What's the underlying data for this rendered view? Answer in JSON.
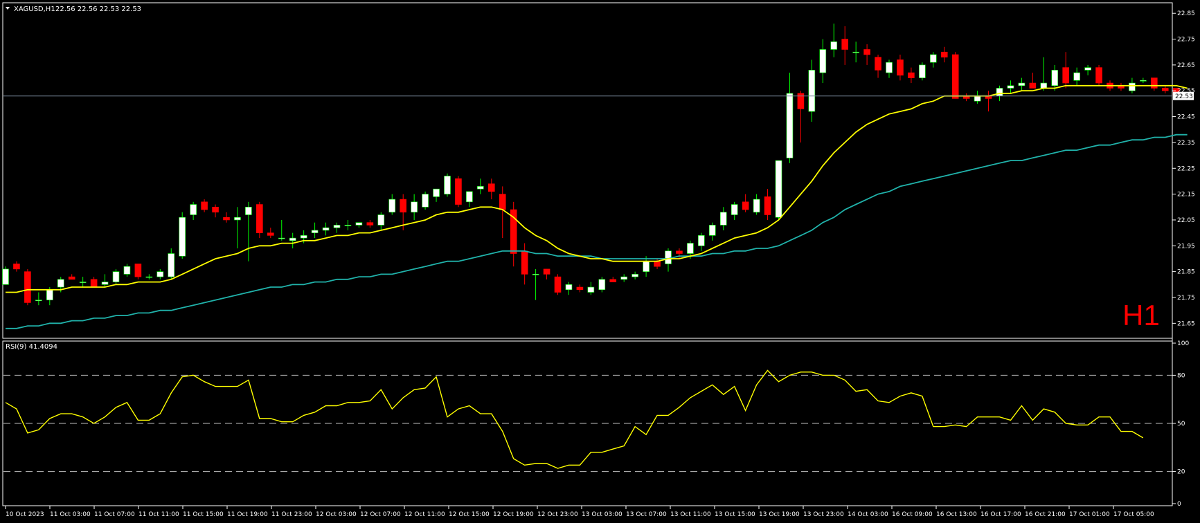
{
  "header": {
    "symbol": "XAGUSD,H1",
    "ohlc": "22.56 22.56 22.53 22.53"
  },
  "price_panel": {
    "current_price_label": "22.53",
    "timeframe_watermark": "H1",
    "colors": {
      "bull_body": "#ffffff",
      "bear_body": "#ff0000",
      "bull_wick": "#00ff00",
      "bear_wick": "#ff0000",
      "ma_fast": "#ffff00",
      "ma_slow": "#20b2aa",
      "bid_line": "#778899",
      "watermark": "#ff0000"
    },
    "yticks": [
      "22.85",
      "22.75",
      "22.65",
      "22.55",
      "22.45",
      "22.35",
      "22.25",
      "22.15",
      "22.05",
      "21.95",
      "21.85",
      "21.75",
      "21.65"
    ]
  },
  "rsi_panel": {
    "label": "RSI(9) 41.4094",
    "line_color": "#ffff00",
    "levels": [
      80,
      50,
      20
    ],
    "yticks": [
      "100",
      "80",
      "50",
      "20",
      "0"
    ]
  },
  "x_axis": {
    "labels": [
      "10 Oct 2023",
      "11 Oct 03:00",
      "11 Oct 07:00",
      "11 Oct 11:00",
      "11 Oct 15:00",
      "11 Oct 19:00",
      "11 Oct 23:00",
      "12 Oct 03:00",
      "12 Oct 07:00",
      "12 Oct 11:00",
      "12 Oct 15:00",
      "12 Oct 19:00",
      "12 Oct 23:00",
      "13 Oct 03:00",
      "13 Oct 07:00",
      "13 Oct 11:00",
      "13 Oct 15:00",
      "13 Oct 19:00",
      "13 Oct 23:00",
      "14 Oct 03:00",
      "16 Oct 09:00",
      "16 Oct 13:00",
      "16 Oct 17:00",
      "16 Oct 21:00",
      "17 Oct 01:00",
      "17 Oct 05:00"
    ]
  },
  "chart_data": [
    {
      "type": "candlestick",
      "symbol": "XAGUSD",
      "timeframe": "H1",
      "ylim": [
        21.6,
        22.88
      ],
      "candles": [
        {
          "o": 21.8,
          "h": 21.87,
          "l": 21.8,
          "c": 21.86
        },
        {
          "o": 21.88,
          "h": 21.89,
          "l": 21.85,
          "c": 21.86
        },
        {
          "o": 21.85,
          "h": 21.86,
          "l": 21.72,
          "c": 21.73
        },
        {
          "o": 21.74,
          "h": 21.77,
          "l": 21.72,
          "c": 21.74
        },
        {
          "o": 21.74,
          "h": 21.79,
          "l": 21.72,
          "c": 21.78
        },
        {
          "o": 21.79,
          "h": 21.83,
          "l": 21.77,
          "c": 21.82
        },
        {
          "o": 21.83,
          "h": 21.84,
          "l": 21.82,
          "c": 21.82
        },
        {
          "o": 21.81,
          "h": 21.83,
          "l": 21.79,
          "c": 21.81
        },
        {
          "o": 21.82,
          "h": 21.83,
          "l": 21.79,
          "c": 21.79
        },
        {
          "o": 21.8,
          "h": 21.84,
          "l": 21.79,
          "c": 21.81
        },
        {
          "o": 21.81,
          "h": 21.86,
          "l": 21.8,
          "c": 21.85
        },
        {
          "o": 21.84,
          "h": 21.88,
          "l": 21.83,
          "c": 21.87
        },
        {
          "o": 21.88,
          "h": 21.88,
          "l": 21.82,
          "c": 21.83
        },
        {
          "o": 21.83,
          "h": 21.84,
          "l": 21.82,
          "c": 21.83
        },
        {
          "o": 21.83,
          "h": 21.86,
          "l": 21.82,
          "c": 21.85
        },
        {
          "o": 21.83,
          "h": 21.94,
          "l": 21.82,
          "c": 21.92
        },
        {
          "o": 21.91,
          "h": 22.08,
          "l": 21.9,
          "c": 22.06
        },
        {
          "o": 22.07,
          "h": 22.12,
          "l": 22.05,
          "c": 22.11
        },
        {
          "o": 22.12,
          "h": 22.13,
          "l": 22.08,
          "c": 22.09
        },
        {
          "o": 22.1,
          "h": 22.11,
          "l": 22.06,
          "c": 22.08
        },
        {
          "o": 22.06,
          "h": 22.08,
          "l": 22.04,
          "c": 22.05
        },
        {
          "o": 22.05,
          "h": 22.1,
          "l": 21.94,
          "c": 22.06
        },
        {
          "o": 22.07,
          "h": 22.12,
          "l": 21.89,
          "c": 22.1
        },
        {
          "o": 22.11,
          "h": 22.12,
          "l": 21.98,
          "c": 22.0
        },
        {
          "o": 22.0,
          "h": 22.02,
          "l": 21.98,
          "c": 21.99
        },
        {
          "o": 21.98,
          "h": 22.05,
          "l": 21.97,
          "c": 21.98
        },
        {
          "o": 21.97,
          "h": 22.0,
          "l": 21.94,
          "c": 21.98
        },
        {
          "o": 21.98,
          "h": 22.01,
          "l": 21.96,
          "c": 21.99
        },
        {
          "o": 22.0,
          "h": 22.04,
          "l": 21.98,
          "c": 22.01
        },
        {
          "o": 22.01,
          "h": 22.04,
          "l": 21.99,
          "c": 22.02
        },
        {
          "o": 22.02,
          "h": 22.04,
          "l": 22.0,
          "c": 22.03
        },
        {
          "o": 22.03,
          "h": 22.05,
          "l": 22.01,
          "c": 22.03
        },
        {
          "o": 22.03,
          "h": 22.04,
          "l": 22.02,
          "c": 22.04
        },
        {
          "o": 22.04,
          "h": 22.05,
          "l": 22.02,
          "c": 22.03
        },
        {
          "o": 22.03,
          "h": 22.08,
          "l": 22.01,
          "c": 22.07
        },
        {
          "o": 22.08,
          "h": 22.15,
          "l": 22.07,
          "c": 22.13
        },
        {
          "o": 22.13,
          "h": 22.15,
          "l": 22.01,
          "c": 22.08
        },
        {
          "o": 22.08,
          "h": 22.15,
          "l": 22.05,
          "c": 22.12
        },
        {
          "o": 22.1,
          "h": 22.16,
          "l": 22.09,
          "c": 22.15
        },
        {
          "o": 22.14,
          "h": 22.17,
          "l": 22.12,
          "c": 22.17
        },
        {
          "o": 22.15,
          "h": 22.23,
          "l": 22.14,
          "c": 22.22
        },
        {
          "o": 22.21,
          "h": 22.22,
          "l": 22.1,
          "c": 22.11
        },
        {
          "o": 22.12,
          "h": 22.16,
          "l": 22.1,
          "c": 22.16
        },
        {
          "o": 22.17,
          "h": 22.21,
          "l": 22.15,
          "c": 22.18
        },
        {
          "o": 22.19,
          "h": 22.21,
          "l": 22.13,
          "c": 22.16
        },
        {
          "o": 22.15,
          "h": 22.18,
          "l": 21.98,
          "c": 22.09
        },
        {
          "o": 22.09,
          "h": 22.12,
          "l": 21.87,
          "c": 21.92
        },
        {
          "o": 21.93,
          "h": 21.96,
          "l": 21.8,
          "c": 21.84
        },
        {
          "o": 21.84,
          "h": 21.86,
          "l": 21.74,
          "c": 21.84
        },
        {
          "o": 21.86,
          "h": 21.86,
          "l": 21.82,
          "c": 21.84
        },
        {
          "o": 21.83,
          "h": 21.84,
          "l": 21.76,
          "c": 21.77
        },
        {
          "o": 21.78,
          "h": 21.81,
          "l": 21.76,
          "c": 21.8
        },
        {
          "o": 21.79,
          "h": 21.8,
          "l": 21.77,
          "c": 21.78
        },
        {
          "o": 21.77,
          "h": 21.81,
          "l": 21.76,
          "c": 21.79
        },
        {
          "o": 21.78,
          "h": 21.83,
          "l": 21.77,
          "c": 21.82
        },
        {
          "o": 21.82,
          "h": 21.83,
          "l": 21.81,
          "c": 21.81
        },
        {
          "o": 21.82,
          "h": 21.84,
          "l": 21.81,
          "c": 21.83
        },
        {
          "o": 21.83,
          "h": 21.85,
          "l": 21.82,
          "c": 21.84
        },
        {
          "o": 21.85,
          "h": 21.91,
          "l": 21.83,
          "c": 21.89
        },
        {
          "o": 21.89,
          "h": 21.9,
          "l": 21.86,
          "c": 21.87
        },
        {
          "o": 21.88,
          "h": 21.94,
          "l": 21.85,
          "c": 21.93
        },
        {
          "o": 21.93,
          "h": 21.94,
          "l": 21.9,
          "c": 21.92
        },
        {
          "o": 21.92,
          "h": 21.97,
          "l": 21.9,
          "c": 21.96
        },
        {
          "o": 21.95,
          "h": 22.0,
          "l": 21.93,
          "c": 21.99
        },
        {
          "o": 21.99,
          "h": 22.04,
          "l": 21.97,
          "c": 22.03
        },
        {
          "o": 22.03,
          "h": 22.1,
          "l": 22.01,
          "c": 22.08
        },
        {
          "o": 22.07,
          "h": 22.12,
          "l": 22.05,
          "c": 22.11
        },
        {
          "o": 22.12,
          "h": 22.15,
          "l": 22.08,
          "c": 22.09
        },
        {
          "o": 22.08,
          "h": 22.15,
          "l": 22.07,
          "c": 22.13
        },
        {
          "o": 22.14,
          "h": 22.17,
          "l": 22.05,
          "c": 22.07
        },
        {
          "o": 22.06,
          "h": 22.28,
          "l": 22.05,
          "c": 22.28
        },
        {
          "o": 22.29,
          "h": 22.62,
          "l": 22.27,
          "c": 22.54
        },
        {
          "o": 22.54,
          "h": 22.55,
          "l": 22.35,
          "c": 22.48
        },
        {
          "o": 22.47,
          "h": 22.67,
          "l": 22.43,
          "c": 22.63
        },
        {
          "o": 22.62,
          "h": 22.75,
          "l": 22.58,
          "c": 22.71
        },
        {
          "o": 22.71,
          "h": 22.81,
          "l": 22.68,
          "c": 22.74
        },
        {
          "o": 22.75,
          "h": 22.8,
          "l": 22.65,
          "c": 22.71
        },
        {
          "o": 22.7,
          "h": 22.74,
          "l": 22.66,
          "c": 22.7
        },
        {
          "o": 22.71,
          "h": 22.73,
          "l": 22.65,
          "c": 22.69
        },
        {
          "o": 22.68,
          "h": 22.69,
          "l": 22.6,
          "c": 22.63
        },
        {
          "o": 22.62,
          "h": 22.67,
          "l": 22.6,
          "c": 22.66
        },
        {
          "o": 22.67,
          "h": 22.69,
          "l": 22.59,
          "c": 22.61
        },
        {
          "o": 22.62,
          "h": 22.64,
          "l": 22.58,
          "c": 22.6
        },
        {
          "o": 22.6,
          "h": 22.66,
          "l": 22.59,
          "c": 22.65
        },
        {
          "o": 22.66,
          "h": 22.7,
          "l": 22.64,
          "c": 22.69
        },
        {
          "o": 22.7,
          "h": 22.72,
          "l": 22.66,
          "c": 22.68
        },
        {
          "o": 22.69,
          "h": 22.7,
          "l": 22.52,
          "c": 22.52
        },
        {
          "o": 22.53,
          "h": 22.54,
          "l": 22.51,
          "c": 22.52
        },
        {
          "o": 22.51,
          "h": 22.55,
          "l": 22.5,
          "c": 22.53
        },
        {
          "o": 22.53,
          "h": 22.55,
          "l": 22.47,
          "c": 22.52
        },
        {
          "o": 22.53,
          "h": 22.57,
          "l": 22.51,
          "c": 22.56
        },
        {
          "o": 22.56,
          "h": 22.59,
          "l": 22.54,
          "c": 22.57
        },
        {
          "o": 22.57,
          "h": 22.6,
          "l": 22.55,
          "c": 22.58
        },
        {
          "o": 22.58,
          "h": 22.62,
          "l": 22.56,
          "c": 22.56
        },
        {
          "o": 22.56,
          "h": 22.68,
          "l": 22.55,
          "c": 22.58
        },
        {
          "o": 22.57,
          "h": 22.65,
          "l": 22.55,
          "c": 22.63
        },
        {
          "o": 22.64,
          "h": 22.7,
          "l": 22.56,
          "c": 22.58
        },
        {
          "o": 22.59,
          "h": 22.64,
          "l": 22.57,
          "c": 22.62
        },
        {
          "o": 22.63,
          "h": 22.65,
          "l": 22.61,
          "c": 22.64
        },
        {
          "o": 22.64,
          "h": 22.65,
          "l": 22.57,
          "c": 22.58
        },
        {
          "o": 22.58,
          "h": 22.59,
          "l": 22.55,
          "c": 22.56
        },
        {
          "o": 22.57,
          "h": 22.58,
          "l": 22.55,
          "c": 22.56
        },
        {
          "o": 22.55,
          "h": 22.6,
          "l": 22.54,
          "c": 22.58
        },
        {
          "o": 22.59,
          "h": 22.6,
          "l": 22.58,
          "c": 22.59
        },
        {
          "o": 22.6,
          "h": 22.6,
          "l": 22.55,
          "c": 22.56
        },
        {
          "o": 22.56,
          "h": 22.57,
          "l": 22.54,
          "c": 22.55
        },
        {
          "o": 22.56,
          "h": 22.56,
          "l": 22.53,
          "c": 22.53
        }
      ],
      "ma_fast": [
        21.77,
        21.77,
        21.78,
        21.78,
        21.78,
        21.78,
        21.79,
        21.79,
        21.79,
        21.79,
        21.8,
        21.8,
        21.81,
        21.81,
        21.81,
        21.82,
        21.84,
        21.86,
        21.88,
        21.9,
        21.91,
        21.92,
        21.94,
        21.95,
        21.95,
        21.96,
        21.96,
        21.97,
        21.97,
        21.98,
        21.99,
        21.99,
        22.0,
        22.0,
        22.01,
        22.02,
        22.03,
        22.04,
        22.05,
        22.07,
        22.08,
        22.08,
        22.09,
        22.1,
        22.1,
        22.09,
        22.06,
        22.02,
        21.99,
        21.97,
        21.94,
        21.92,
        21.91,
        21.9,
        21.9,
        21.89,
        21.89,
        21.89,
        21.89,
        21.89,
        21.9,
        21.9,
        21.91,
        21.92,
        21.94,
        21.96,
        21.98,
        21.99,
        22.0,
        22.02,
        22.05,
        22.1,
        22.15,
        22.2,
        22.26,
        22.31,
        22.35,
        22.39,
        22.42,
        22.44,
        22.46,
        22.47,
        22.48,
        22.5,
        22.51,
        22.53,
        22.53,
        22.53,
        22.53,
        22.53,
        22.54,
        22.54,
        22.55,
        22.55,
        22.56,
        22.56,
        22.57,
        22.57,
        22.57,
        22.57,
        22.57,
        22.57,
        22.57,
        22.57,
        22.57,
        22.57,
        22.57,
        22.56
      ],
      "ma_slow": [
        21.63,
        21.63,
        21.64,
        21.64,
        21.65,
        21.65,
        21.66,
        21.66,
        21.67,
        21.67,
        21.68,
        21.68,
        21.69,
        21.69,
        21.7,
        21.7,
        21.71,
        21.72,
        21.73,
        21.74,
        21.75,
        21.76,
        21.77,
        21.78,
        21.79,
        21.79,
        21.8,
        21.8,
        21.81,
        21.81,
        21.82,
        21.82,
        21.83,
        21.83,
        21.84,
        21.84,
        21.85,
        21.86,
        21.87,
        21.88,
        21.89,
        21.89,
        21.9,
        21.91,
        21.92,
        21.93,
        21.93,
        21.93,
        21.92,
        21.92,
        21.91,
        21.91,
        21.91,
        21.91,
        21.9,
        21.9,
        21.9,
        21.9,
        21.9,
        21.9,
        21.9,
        21.91,
        21.91,
        21.91,
        21.92,
        21.92,
        21.93,
        21.93,
        21.94,
        21.94,
        21.95,
        21.97,
        21.99,
        22.01,
        22.04,
        22.06,
        22.09,
        22.11,
        22.13,
        22.15,
        22.16,
        22.18,
        22.19,
        22.2,
        22.21,
        22.22,
        22.23,
        22.24,
        22.25,
        22.26,
        22.27,
        22.28,
        22.28,
        22.29,
        22.3,
        22.31,
        22.32,
        22.32,
        22.33,
        22.34,
        22.34,
        22.35,
        22.36,
        22.36,
        22.37,
        22.37,
        22.38,
        22.38
      ]
    },
    {
      "type": "line",
      "name": "RSI(9) 41.4094",
      "ylim": [
        0,
        100
      ],
      "levels": [
        80,
        50,
        20
      ],
      "values": [
        63,
        59,
        44,
        46,
        53,
        56,
        56,
        54,
        50,
        54,
        60,
        63,
        52,
        52,
        56,
        69,
        79,
        80,
        76,
        73,
        73,
        73,
        77,
        53,
        53,
        51,
        51,
        55,
        57,
        61,
        61,
        63,
        63,
        64,
        71,
        59,
        66,
        71,
        72,
        79,
        54,
        59,
        61,
        56,
        56,
        45,
        28,
        24,
        25,
        25,
        22,
        24,
        24,
        32,
        32,
        34,
        36,
        48,
        43,
        55,
        55,
        60,
        66,
        70,
        74,
        68,
        73,
        58,
        74,
        83,
        76,
        80,
        82,
        82,
        80,
        80,
        77,
        70,
        71,
        64,
        63,
        67,
        69,
        67,
        48,
        48,
        49,
        48,
        54,
        54,
        54,
        52,
        61,
        52,
        59,
        57,
        50,
        49,
        49,
        54,
        54,
        45,
        45,
        41
      ]
    }
  ]
}
